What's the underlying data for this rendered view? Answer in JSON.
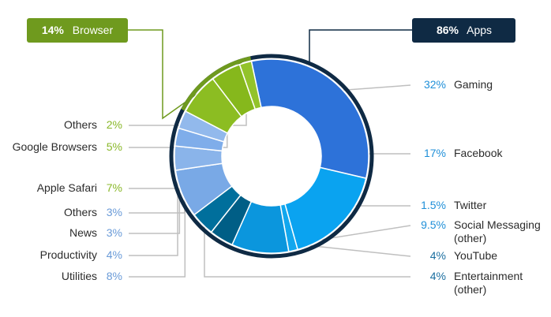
{
  "chart_data": {
    "type": "pie",
    "style": "donut",
    "groups": [
      {
        "key": "apps",
        "percent": "86%",
        "name": "Apps",
        "color": "#0f2a44"
      },
      {
        "key": "browser",
        "percent": "14%",
        "name": "Browser",
        "color": "#6f9a1e"
      }
    ],
    "slices": [
      {
        "key": "gaming",
        "group": "apps",
        "label": "Gaming",
        "pct_text": "32%",
        "value": 32,
        "color": "#2d72d9",
        "label_color": "#1f8fd8"
      },
      {
        "key": "facebook",
        "group": "apps",
        "label": "Facebook",
        "pct_text": "17%",
        "value": 17,
        "color": "#0aa3f0",
        "label_color": "#1f8fd8"
      },
      {
        "key": "twitter",
        "group": "apps",
        "label": "Twitter",
        "pct_text": "1.5%",
        "value": 1.5,
        "color": "#12a7ee",
        "label_color": "#1f8fd8"
      },
      {
        "key": "social",
        "group": "apps",
        "label": "Social Messaging (other)",
        "label_lines": [
          "Social Messaging",
          "(other)"
        ],
        "pct_text": "9.5%",
        "value": 9.5,
        "color": "#0b96dd",
        "label_color": "#1f8fd8"
      },
      {
        "key": "youtube",
        "group": "apps",
        "label": "YouTube",
        "pct_text": "4%",
        "value": 4,
        "color": "#005e86",
        "label_color": "#1a6ea0"
      },
      {
        "key": "entertainment",
        "group": "apps",
        "label": "Entertainment (other)",
        "label_lines": [
          "Entertainment",
          "(other)"
        ],
        "pct_text": "4%",
        "value": 4,
        "color": "#006f9c",
        "label_color": "#1a6ea0"
      },
      {
        "key": "utilities",
        "group": "apps",
        "label": "Utilities",
        "pct_text": "8%",
        "value": 8,
        "color": "#79a9e6",
        "label_color": "#6a9bd8"
      },
      {
        "key": "productivity",
        "group": "apps",
        "label": "Productivity",
        "pct_text": "4%",
        "value": 4,
        "color": "#8ab4ea",
        "label_color": "#6a9bd8"
      },
      {
        "key": "news",
        "group": "apps",
        "label": "News",
        "pct_text": "3%",
        "value": 3,
        "color": "#7fadea",
        "label_color": "#6a9bd8"
      },
      {
        "key": "others_apps",
        "group": "apps",
        "label": "Others",
        "pct_text": "3%",
        "value": 3,
        "color": "#92b9ec",
        "label_color": "#6a9bd8"
      },
      {
        "key": "safari",
        "group": "browser",
        "label": "Apple Safari",
        "pct_text": "7%",
        "value": 7,
        "color": "#8cbd22",
        "label_color": "#8ab82a"
      },
      {
        "key": "google",
        "group": "browser",
        "label": "Google Browsers",
        "pct_text": "5%",
        "value": 5,
        "color": "#86b81c",
        "label_color": "#8ab82a"
      },
      {
        "key": "others_browser",
        "group": "browser",
        "label": "Others",
        "pct_text": "2%",
        "value": 2,
        "color": "#93c32a",
        "label_color": "#8ab82a"
      }
    ]
  }
}
